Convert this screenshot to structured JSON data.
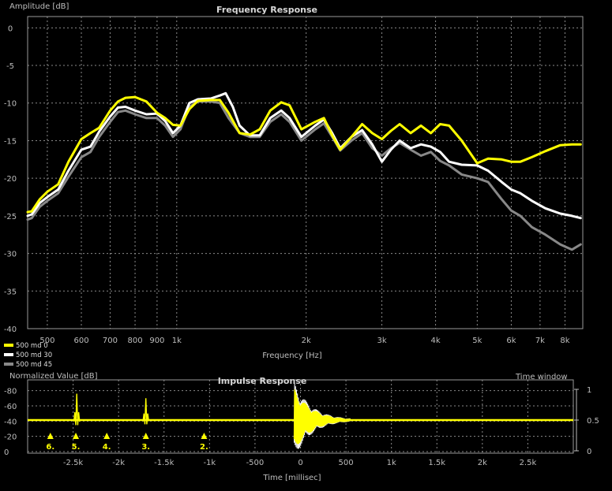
{
  "chart_data": [
    {
      "type": "line",
      "title": "Frequency Response",
      "ylabel": "Amplitude [dB]",
      "xlabel": "Frequency [Hz]",
      "xscale": "log",
      "xlim": [
        450,
        8800
      ],
      "ylim": [
        -40,
        1.5
      ],
      "grid": true,
      "legend_position": "bottom-left",
      "yticks": [
        0,
        -5,
        -10,
        -15,
        -20,
        -25,
        -30,
        -35,
        -40
      ],
      "xticks": [
        {
          "v": 500,
          "label": "500"
        },
        {
          "v": 600,
          "label": "600"
        },
        {
          "v": 700,
          "label": "700"
        },
        {
          "v": 800,
          "label": "800"
        },
        {
          "v": 900,
          "label": "900"
        },
        {
          "v": 1000,
          "label": "1k"
        },
        {
          "v": 2000,
          "label": "2k"
        },
        {
          "v": 3000,
          "label": "3k"
        },
        {
          "v": 4000,
          "label": "4k"
        },
        {
          "v": 5000,
          "label": "5k"
        },
        {
          "v": 6000,
          "label": "6k"
        },
        {
          "v": 7000,
          "label": "7k"
        },
        {
          "v": 8000,
          "label": "8k"
        }
      ],
      "series": [
        {
          "name": "500 md 45",
          "color": "#888888",
          "points": [
            [
              450,
              -25.5
            ],
            [
              460,
              -25.3
            ],
            [
              480,
              -23.8
            ],
            [
              500,
              -23.0
            ],
            [
              530,
              -22.0
            ],
            [
              560,
              -19.8
            ],
            [
              600,
              -17.2
            ],
            [
              630,
              -16.5
            ],
            [
              660,
              -14.5
            ],
            [
              700,
              -12.5
            ],
            [
              730,
              -11.2
            ],
            [
              760,
              -11.0
            ],
            [
              800,
              -11.5
            ],
            [
              850,
              -12.0
            ],
            [
              900,
              -12.0
            ],
            [
              940,
              -13.0
            ],
            [
              980,
              -14.5
            ],
            [
              1020,
              -13.5
            ],
            [
              1070,
              -10.5
            ],
            [
              1120,
              -9.8
            ],
            [
              1200,
              -9.8
            ],
            [
              1260,
              -10.0
            ],
            [
              1320,
              -12.0
            ],
            [
              1400,
              -14.0
            ],
            [
              1480,
              -14.5
            ],
            [
              1560,
              -14.5
            ],
            [
              1650,
              -12.5
            ],
            [
              1750,
              -11.5
            ],
            [
              1830,
              -12.5
            ],
            [
              1950,
              -15.0
            ],
            [
              2100,
              -13.5
            ],
            [
              2200,
              -12.7
            ],
            [
              2300,
              -14.5
            ],
            [
              2400,
              -16.3
            ],
            [
              2550,
              -15.0
            ],
            [
              2700,
              -14.0
            ],
            [
              2850,
              -16.0
            ],
            [
              3000,
              -17.0
            ],
            [
              3150,
              -16.0
            ],
            [
              3300,
              -15.3
            ],
            [
              3500,
              -16.2
            ],
            [
              3700,
              -17.0
            ],
            [
              3900,
              -16.5
            ],
            [
              4100,
              -17.7
            ],
            [
              4300,
              -18.3
            ],
            [
              4600,
              -19.5
            ],
            [
              5000,
              -20.0
            ],
            [
              5300,
              -20.5
            ],
            [
              5700,
              -22.8
            ],
            [
              6000,
              -24.3
            ],
            [
              6300,
              -25.0
            ],
            [
              6700,
              -26.5
            ],
            [
              7200,
              -27.5
            ],
            [
              7800,
              -28.8
            ],
            [
              8300,
              -29.5
            ],
            [
              8700,
              -28.8
            ]
          ]
        },
        {
          "name": "500 md 30",
          "color": "#ffffff",
          "points": [
            [
              450,
              -25.0
            ],
            [
              460,
              -24.8
            ],
            [
              480,
              -23.3
            ],
            [
              500,
              -22.5
            ],
            [
              530,
              -21.5
            ],
            [
              560,
              -19.0
            ],
            [
              600,
              -16.2
            ],
            [
              630,
              -15.8
            ],
            [
              660,
              -13.8
            ],
            [
              700,
              -11.8
            ],
            [
              730,
              -10.6
            ],
            [
              760,
              -10.5
            ],
            [
              800,
              -11.0
            ],
            [
              850,
              -11.5
            ],
            [
              900,
              -11.4
            ],
            [
              940,
              -12.4
            ],
            [
              980,
              -14.0
            ],
            [
              1020,
              -13.0
            ],
            [
              1070,
              -10.0
            ],
            [
              1120,
              -9.5
            ],
            [
              1200,
              -9.4
            ],
            [
              1260,
              -9.0
            ],
            [
              1300,
              -8.7
            ],
            [
              1350,
              -10.5
            ],
            [
              1400,
              -13.0
            ],
            [
              1480,
              -14.3
            ],
            [
              1560,
              -14.3
            ],
            [
              1650,
              -12.0
            ],
            [
              1750,
              -11.0
            ],
            [
              1830,
              -12.0
            ],
            [
              1950,
              -14.5
            ],
            [
              2100,
              -13.0
            ],
            [
              2200,
              -12.2
            ],
            [
              2300,
              -14.0
            ],
            [
              2400,
              -16.0
            ],
            [
              2550,
              -14.5
            ],
            [
              2700,
              -13.6
            ],
            [
              2850,
              -15.5
            ],
            [
              3000,
              -17.8
            ],
            [
              3150,
              -16.2
            ],
            [
              3300,
              -15.0
            ],
            [
              3500,
              -16.0
            ],
            [
              3700,
              -15.5
            ],
            [
              3900,
              -15.8
            ],
            [
              4100,
              -16.5
            ],
            [
              4300,
              -17.8
            ],
            [
              4600,
              -18.2
            ],
            [
              5000,
              -18.3
            ],
            [
              5300,
              -19.0
            ],
            [
              5700,
              -20.5
            ],
            [
              6000,
              -21.5
            ],
            [
              6300,
              -22.0
            ],
            [
              6700,
              -23.0
            ],
            [
              7200,
              -24.0
            ],
            [
              7800,
              -24.7
            ],
            [
              8300,
              -25.0
            ],
            [
              8700,
              -25.3
            ]
          ]
        },
        {
          "name": "500 md 0",
          "color": "#ffff00",
          "points": [
            [
              450,
              -24.5
            ],
            [
              460,
              -24.4
            ],
            [
              480,
              -22.8
            ],
            [
              500,
              -21.8
            ],
            [
              530,
              -20.8
            ],
            [
              560,
              -17.8
            ],
            [
              600,
              -14.8
            ],
            [
              630,
              -14.0
            ],
            [
              660,
              -13.3
            ],
            [
              700,
              -11.0
            ],
            [
              730,
              -9.8
            ],
            [
              760,
              -9.3
            ],
            [
              800,
              -9.2
            ],
            [
              850,
              -9.8
            ],
            [
              900,
              -11.3
            ],
            [
              940,
              -12.0
            ],
            [
              980,
              -12.9
            ],
            [
              1020,
              -13.0
            ],
            [
              1070,
              -10.8
            ],
            [
              1120,
              -9.7
            ],
            [
              1200,
              -9.6
            ],
            [
              1260,
              -9.6
            ],
            [
              1320,
              -11.3
            ],
            [
              1400,
              -14.0
            ],
            [
              1480,
              -14.2
            ],
            [
              1560,
              -13.5
            ],
            [
              1650,
              -11.0
            ],
            [
              1750,
              -9.9
            ],
            [
              1830,
              -10.3
            ],
            [
              1950,
              -13.5
            ],
            [
              2100,
              -12.5
            ],
            [
              2200,
              -12.0
            ],
            [
              2300,
              -14.3
            ],
            [
              2400,
              -16.2
            ],
            [
              2550,
              -14.5
            ],
            [
              2700,
              -12.8
            ],
            [
              2850,
              -14.0
            ],
            [
              3000,
              -14.8
            ],
            [
              3150,
              -13.7
            ],
            [
              3300,
              -12.8
            ],
            [
              3500,
              -14.0
            ],
            [
              3700,
              -13.0
            ],
            [
              3900,
              -14.0
            ],
            [
              4100,
              -12.8
            ],
            [
              4300,
              -13.0
            ],
            [
              4600,
              -15.0
            ],
            [
              5000,
              -18.0
            ],
            [
              5300,
              -17.4
            ],
            [
              5700,
              -17.5
            ],
            [
              6000,
              -17.8
            ],
            [
              6300,
              -17.8
            ],
            [
              6700,
              -17.2
            ],
            [
              7200,
              -16.4
            ],
            [
              7800,
              -15.6
            ],
            [
              8300,
              -15.5
            ],
            [
              8700,
              -15.5
            ]
          ]
        }
      ]
    },
    {
      "type": "line",
      "title": "Impulse Response",
      "ylabel": "Normalized Value [dB]",
      "xlabel": "Time [millisec]",
      "xlim": [
        -3000,
        3000
      ],
      "ylim": [
        0,
        90
      ],
      "grid": true,
      "yticks": [
        {
          "v": 0,
          "label": "0"
        },
        {
          "v": 20,
          "label": "-20"
        },
        {
          "v": 40,
          "label": "-40"
        },
        {
          "v": 60,
          "label": "-60"
        },
        {
          "v": 80,
          "label": "-80"
        }
      ],
      "xticks": [
        {
          "v": -2500,
          "label": "-2.5k"
        },
        {
          "v": -2000,
          "label": "-2k"
        },
        {
          "v": -1500,
          "label": "-1.5k"
        },
        {
          "v": -1000,
          "label": "-1k"
        },
        {
          "v": -500,
          "label": "-500"
        },
        {
          "v": 0,
          "label": "0"
        },
        {
          "v": 500,
          "label": "500"
        },
        {
          "v": 1000,
          "label": "1k"
        },
        {
          "v": 1500,
          "label": "1.5k"
        },
        {
          "v": 2000,
          "label": "2k"
        },
        {
          "v": 2500,
          "label": "2.5k"
        }
      ],
      "time_window": {
        "label": "Time window",
        "ticks": [
          {
            "v": 1,
            "label": "1"
          },
          {
            "v": 0.5,
            "label": "0.5"
          },
          {
            "v": 0,
            "label": "0"
          }
        ],
        "level": 0.5
      },
      "baseline_value": 40,
      "peaks": [
        {
          "t": -2460,
          "height": 76
        },
        {
          "t": -1700,
          "height": 70
        },
        {
          "t": 0,
          "height": 90
        }
      ],
      "markers": [
        {
          "t": -2750,
          "label": "6."
        },
        {
          "t": -2470,
          "label": "5."
        },
        {
          "t": -2130,
          "label": "4."
        },
        {
          "t": -1700,
          "label": "3."
        },
        {
          "t": -1060,
          "label": "2."
        }
      ]
    }
  ]
}
